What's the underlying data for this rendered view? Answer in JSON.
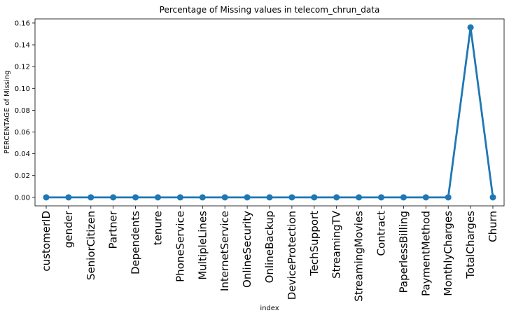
{
  "chart_data": {
    "type": "line",
    "title": "Percentage of Missing values in telecom_chrun_data",
    "xlabel": "index",
    "ylabel": "PERCENTAGE of Missing",
    "categories": [
      "customerID",
      "gender",
      "SeniorCitizen",
      "Partner",
      "Dependents",
      "tenure",
      "PhoneService",
      "MultipleLines",
      "InternetService",
      "OnlineSecurity",
      "OnlineBackup",
      "DeviceProtection",
      "TechSupport",
      "StreamingTV",
      "StreamingMovies",
      "Contract",
      "PaperlessBilling",
      "PaymentMethod",
      "MonthlyCharges",
      "TotalCharges",
      "Churn"
    ],
    "values": [
      0,
      0,
      0,
      0,
      0,
      0,
      0,
      0,
      0,
      0,
      0,
      0,
      0,
      0,
      0,
      0,
      0,
      0,
      0,
      0.156,
      0
    ],
    "yticks": [
      0.0,
      0.02,
      0.04,
      0.06,
      0.08,
      0.1,
      0.12,
      0.14,
      0.16
    ],
    "ytick_labels": [
      "0.00",
      "0.02",
      "0.04",
      "0.06",
      "0.08",
      "0.10",
      "0.12",
      "0.14",
      "0.16"
    ],
    "ylim": [
      -0.0078,
      0.1638
    ],
    "grid": false,
    "line_color": "#1f77b4"
  }
}
